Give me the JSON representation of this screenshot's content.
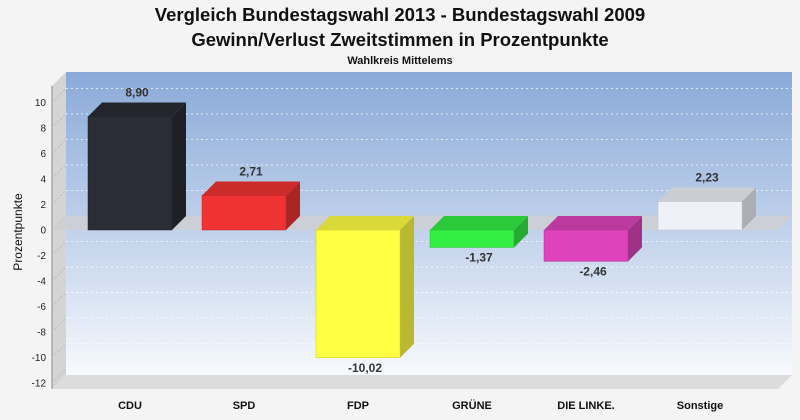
{
  "chart_data": {
    "type": "bar",
    "title": "Vergleich Bundestagswahl 2013 - Bundestagswahl 2009",
    "title2": "Gewinn/Verlust Zweitstimmen in Prozentpunkte",
    "subtitle": "Wahlkreis Mittelems",
    "ylabel": "Prozentpunkte",
    "ylim": [
      -13,
      12
    ],
    "yticks": [
      10,
      8,
      6,
      4,
      2,
      0,
      -2,
      -4,
      -6,
      -8,
      -10,
      -12
    ],
    "categories": [
      "CDU",
      "SPD",
      "FDP",
      "GRÜNE",
      "DIE LINKE.",
      "Sonstige"
    ],
    "values": [
      8.9,
      2.71,
      -10.02,
      -1.37,
      -2.46,
      2.23
    ],
    "value_labels": [
      "8,90",
      "2,71",
      "-10,02",
      "-1,37",
      "-2,46",
      "2,23"
    ],
    "colors": [
      "#2a2d35",
      "#ef3333",
      "#ffff44",
      "#33ee44",
      "#dd44bb",
      "#eef2f8"
    ],
    "grid": true
  }
}
